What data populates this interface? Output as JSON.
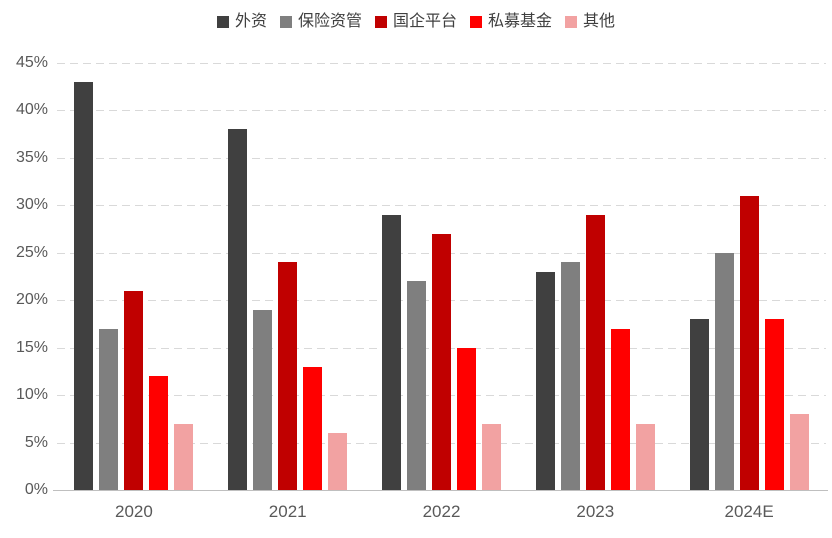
{
  "chart_data": {
    "type": "bar",
    "title": "",
    "xlabel": "",
    "ylabel": "",
    "categories": [
      "2020",
      "2021",
      "2022",
      "2023",
      "2024E"
    ],
    "series": [
      {
        "name": "外资",
        "color": "#404040",
        "values": [
          43,
          38,
          29,
          23,
          18
        ]
      },
      {
        "name": "保险资管",
        "color": "#7f7f7f",
        "values": [
          17,
          19,
          22,
          24,
          25
        ]
      },
      {
        "name": "国企平台",
        "color": "#c00000",
        "values": [
          21,
          24,
          27,
          29,
          31
        ]
      },
      {
        "name": "私募基金",
        "color": "#ff0000",
        "values": [
          12,
          13,
          15,
          17,
          18
        ]
      },
      {
        "name": "其他",
        "color": "#f2a2a2",
        "values": [
          7,
          6,
          7,
          7,
          8
        ]
      }
    ],
    "ylim": [
      0,
      45
    ],
    "ytick_step": 5,
    "ytick_labels": [
      "0%",
      "5%",
      "10%",
      "15%",
      "20%",
      "25%",
      "30%",
      "35%",
      "40%",
      "45%"
    ],
    "grid": "dashed-horizontal",
    "legend_position": "top-center"
  }
}
